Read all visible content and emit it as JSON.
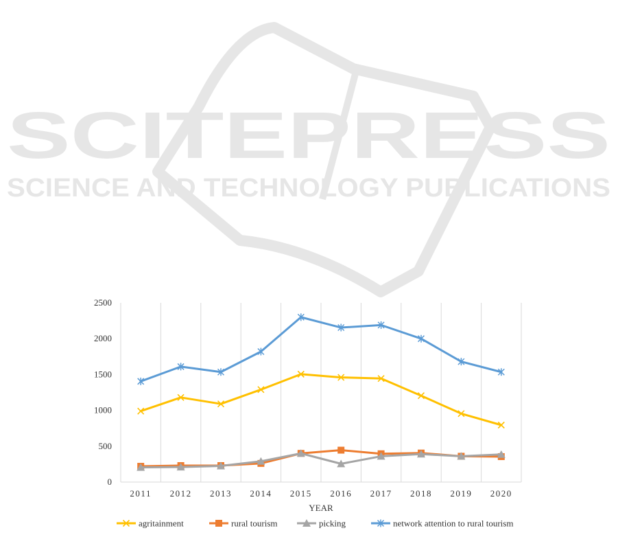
{
  "watermark": {
    "brand": "SCITEPRESS",
    "tagline": "SCIENCE AND TECHNOLOGY PUBLICATIONS"
  },
  "colors": {
    "agritainment": "#FFC000",
    "rural_tourism": "#ED7D31",
    "picking": "#A5A5A5",
    "network_attention": "#5B9BD5",
    "grid": "#D9D9D9",
    "watermark": "#E6E6E6"
  },
  "chart_data": {
    "type": "line",
    "categories": [
      "2011",
      "2012",
      "2013",
      "2014",
      "2015",
      "2016",
      "2017",
      "2018",
      "2019",
      "2020"
    ],
    "series": [
      {
        "name": "agritainment",
        "marker": "x",
        "values": [
          990,
          1180,
          1090,
          1290,
          1505,
          1460,
          1445,
          1205,
          955,
          795
        ]
      },
      {
        "name": "rural tourism",
        "marker": "square",
        "values": [
          220,
          230,
          230,
          260,
          400,
          445,
          395,
          405,
          360,
          355
        ]
      },
      {
        "name": "picking",
        "marker": "triangle",
        "values": [
          205,
          210,
          225,
          290,
          400,
          255,
          360,
          390,
          360,
          385
        ]
      },
      {
        "name": "network attention to rural tourism",
        "marker": "asterisk",
        "values": [
          1405,
          1610,
          1535,
          1820,
          2300,
          2155,
          2190,
          2000,
          1680,
          1535
        ]
      }
    ],
    "xlabel": "YEAR",
    "ylabel": "",
    "ylim": [
      0,
      2500
    ],
    "yticks": [
      "0",
      "500",
      "1000",
      "1500",
      "2000",
      "2500"
    ],
    "grid": "vertical",
    "legend": "bottom"
  }
}
